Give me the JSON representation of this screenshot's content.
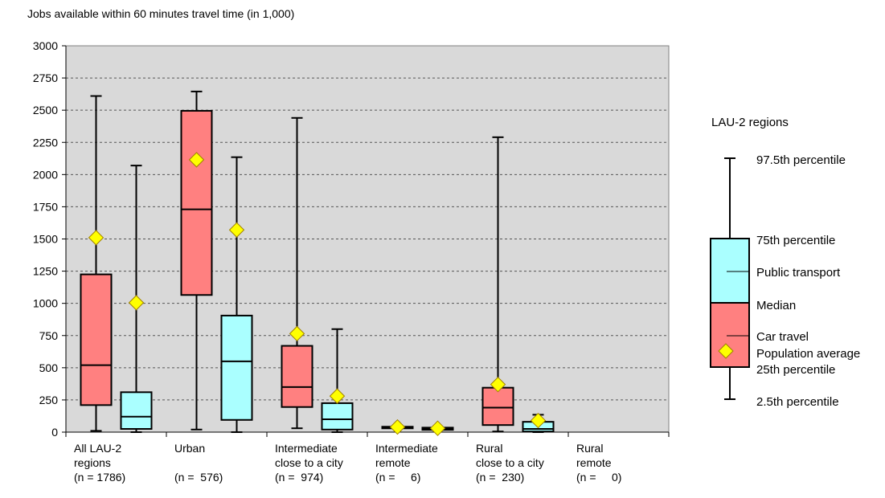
{
  "chart_data": {
    "type": "box",
    "title": "Jobs available within 60 minutes travel time (in 1,000)",
    "ylim": [
      0,
      3000
    ],
    "yticks": [
      0,
      250,
      500,
      750,
      1000,
      1250,
      1500,
      1750,
      2000,
      2250,
      2500,
      2750,
      3000
    ],
    "grid": true,
    "categories": [
      {
        "label_lines": [
          "All LAU-2",
          "regions",
          "(n = 1786)"
        ]
      },
      {
        "label_lines": [
          "Urban",
          "",
          "(n =  576)"
        ]
      },
      {
        "label_lines": [
          "Intermediate",
          "close to a city",
          "(n =  974)"
        ]
      },
      {
        "label_lines": [
          "Intermediate",
          "remote",
          "(n =     6)"
        ]
      },
      {
        "label_lines": [
          "Rural",
          "close to a city",
          "(n =  230)"
        ]
      },
      {
        "label_lines": [
          "Rural",
          "remote",
          "(n =     0)"
        ]
      }
    ],
    "series": [
      {
        "name": "Car travel",
        "color": "#ff8080",
        "boxes": [
          {
            "p2_5": 10,
            "p25": 210,
            "median": 520,
            "p75": 1225,
            "p97_5": 2610,
            "mean": 1510
          },
          {
            "p2_5": 20,
            "p25": 1065,
            "median": 1730,
            "p75": 2495,
            "p97_5": 2645,
            "mean": 2115
          },
          {
            "p2_5": 30,
            "p25": 195,
            "median": 350,
            "p75": 670,
            "p97_5": 2440,
            "mean": 765
          },
          {
            "p2_5": 35,
            "p25": 35,
            "median": 38,
            "p75": 42,
            "p97_5": 45,
            "mean": 40
          },
          {
            "p2_5": 5,
            "p25": 55,
            "median": 190,
            "p75": 345,
            "p97_5": 2290,
            "mean": 370
          },
          null
        ]
      },
      {
        "name": "Public transport",
        "color": "#aaffff",
        "boxes": [
          {
            "p2_5": 0,
            "p25": 25,
            "median": 120,
            "p75": 310,
            "p97_5": 2070,
            "mean": 1005
          },
          {
            "p2_5": 0,
            "p25": 95,
            "median": 550,
            "p75": 905,
            "p97_5": 2135,
            "mean": 1570
          },
          {
            "p2_5": 0,
            "p25": 20,
            "median": 100,
            "p75": 225,
            "p97_5": 800,
            "mean": 280
          },
          {
            "p2_5": 15,
            "p25": 18,
            "median": 28,
            "p75": 35,
            "p97_5": 40,
            "mean": 30
          },
          {
            "p2_5": 0,
            "p25": 5,
            "median": 25,
            "p75": 80,
            "p97_5": 135,
            "mean": 90
          },
          null
        ]
      }
    ],
    "legend": {
      "title": "LAU-2 regions",
      "p97_5_label": "97.5th percentile",
      "p75_label": "75th percentile",
      "public_label": "Public transport",
      "median_label": "Median",
      "car_label": "Car travel",
      "average_label": "Population average",
      "p25_label": "25th percentile",
      "p2_5_label": "2.5th percentile"
    },
    "colors": {
      "plot_bg": "#d9d9d9",
      "mean_marker": "#ffff00",
      "mean_marker_stroke": "#a08000"
    }
  }
}
